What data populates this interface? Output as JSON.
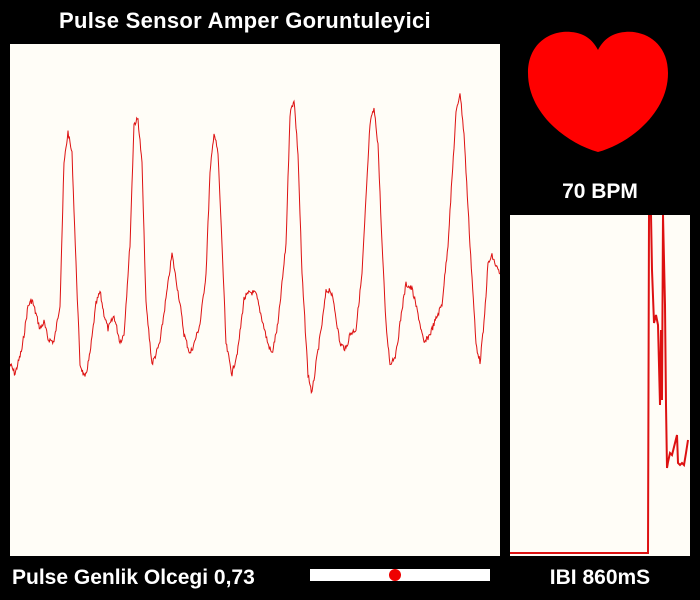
{
  "title": "Pulse Sensor Amper Goruntuleyici",
  "bpm_label": "70 BPM",
  "ibi_label": "IBI 860mS",
  "scale": {
    "label": "Pulse Genlik Olcegi 0,73",
    "value": 0.73,
    "slider_position": 0.47
  },
  "colors": {
    "background": "#000000",
    "panel": "#fffdf7",
    "trace": "#dd1111",
    "heart": "#ff0000",
    "text": "#ffffff"
  },
  "icons": {
    "heart": "heart-icon"
  }
}
